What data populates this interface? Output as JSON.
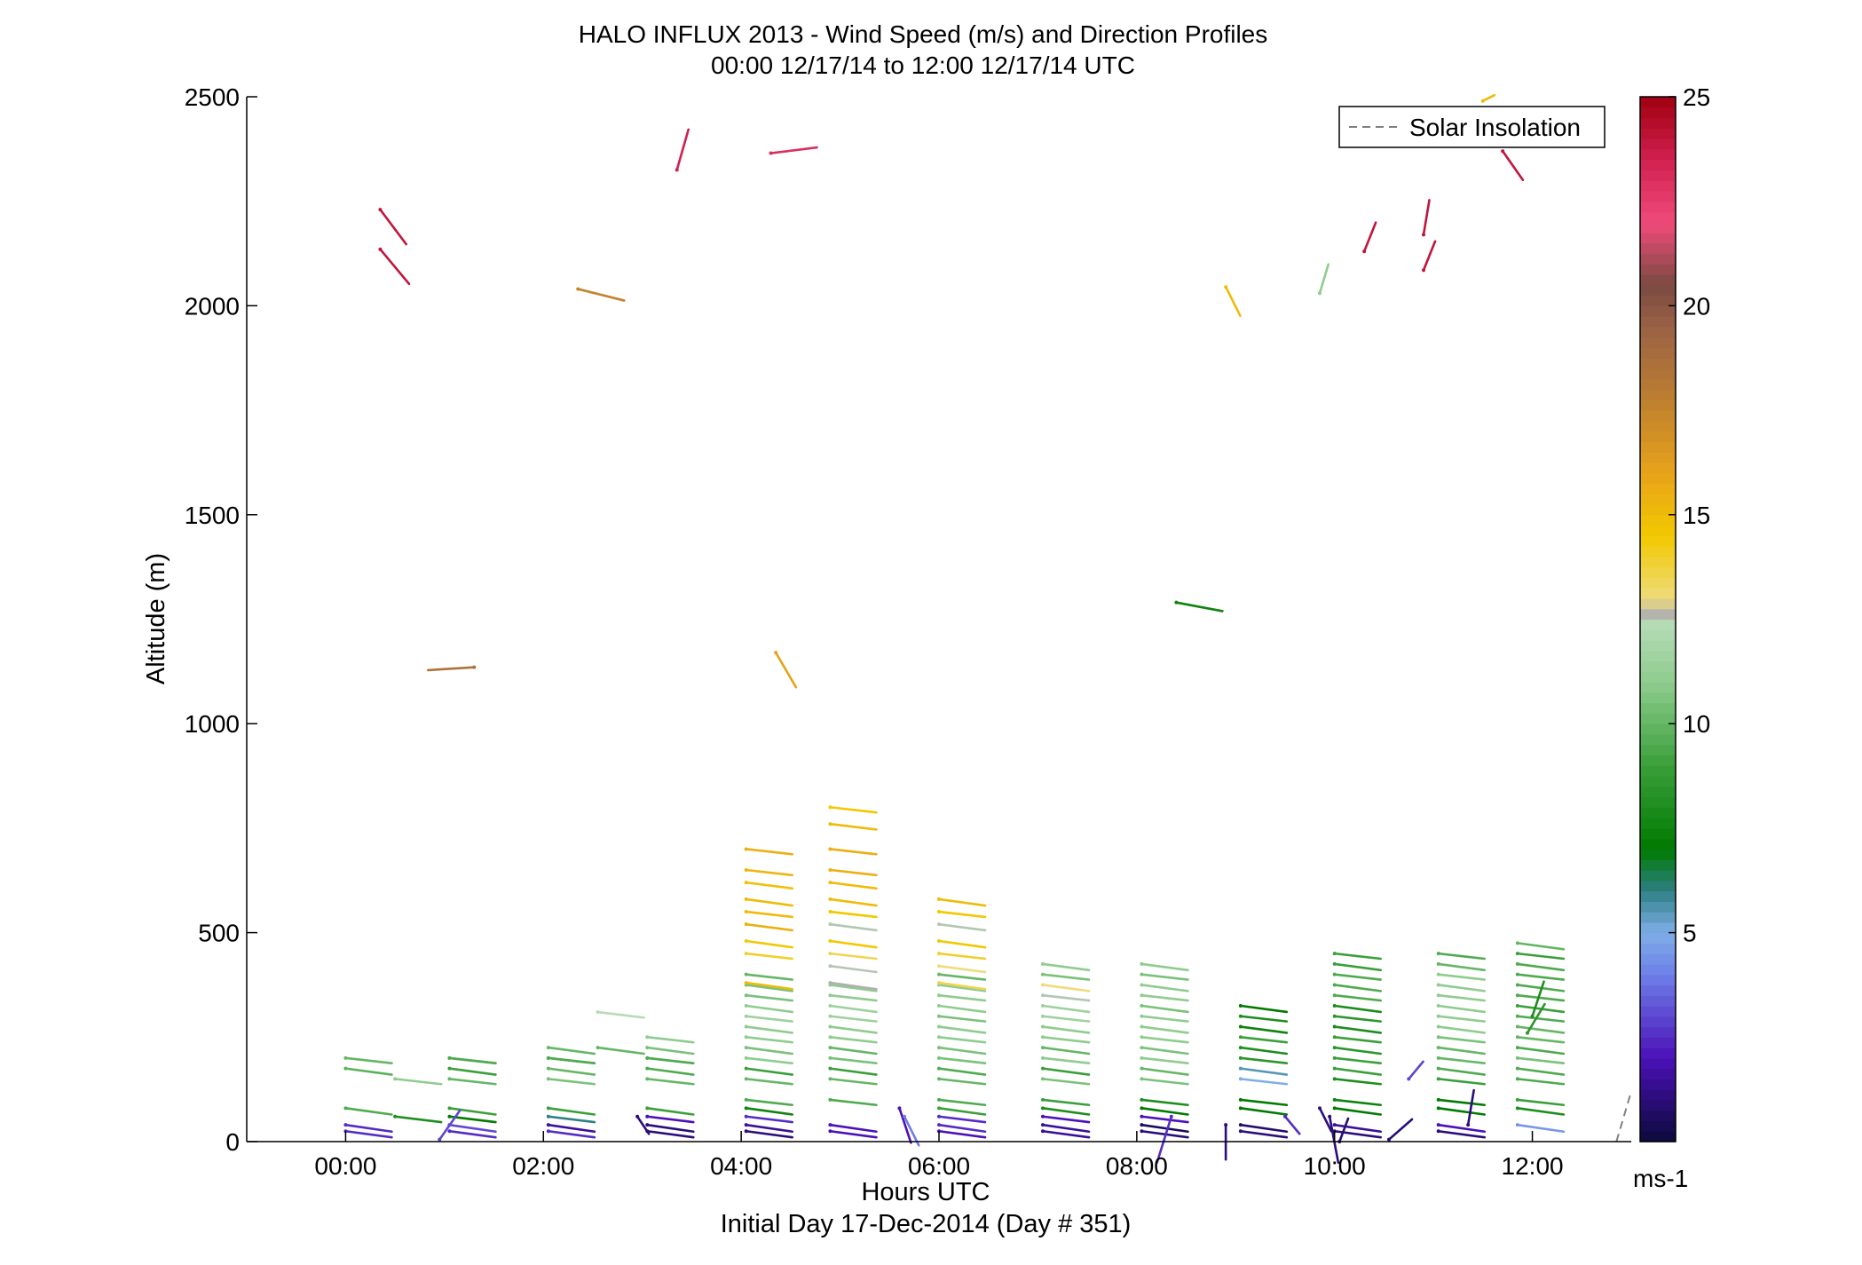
{
  "chart_data": {
    "type": "scatter",
    "title": "HALO INFLUX 2013 - Wind Speed (m/s) and Direction Profiles",
    "subtitle": "00:00 12/17/14 to 12:00 12/17/14  UTC",
    "xlabel": "Hours UTC",
    "xlabel2": "Initial Day 17-Dec-2014 (Day # 351)",
    "ylabel": "Altitude (m)",
    "xlim": [
      -1,
      13
    ],
    "ylim": [
      0,
      2500
    ],
    "x_ticks": [
      0,
      2,
      4,
      6,
      8,
      10,
      12
    ],
    "x_tick_labels": [
      "00:00",
      "02:00",
      "04:00",
      "06:00",
      "08:00",
      "10:00",
      "12:00"
    ],
    "y_ticks": [
      0,
      500,
      1000,
      1500,
      2000,
      2500
    ],
    "y_tick_labels": [
      "0",
      "500",
      "1000",
      "1500",
      "2000",
      "2500"
    ],
    "legend": {
      "label": "Solar Insolation",
      "position": "top-right",
      "style": "dashed gray line"
    },
    "solar_insolation_line": [
      [
        12.85,
        0
      ],
      [
        13.0,
        120
      ]
    ],
    "colorbar": {
      "unit_label": "ms-1",
      "range": [
        0,
        25
      ],
      "ticks": [
        5,
        10,
        15,
        20,
        25
      ],
      "tick_labels": [
        "5",
        "10",
        "15",
        "20",
        "25"
      ],
      "colormap": [
        [
          0,
          "#0b0a3a"
        ],
        [
          2,
          "#4b10b8"
        ],
        [
          4,
          "#6e7fe8"
        ],
        [
          5,
          "#7faee8"
        ],
        [
          6,
          "#2f7f84"
        ],
        [
          7,
          "#007a00"
        ],
        [
          9,
          "#3a9f3a"
        ],
        [
          11,
          "#8fcc8f"
        ],
        [
          12.4,
          "#b6dbb6"
        ],
        [
          12.6,
          "#b0b0b0"
        ],
        [
          13,
          "#eedc7a"
        ],
        [
          14.5,
          "#f2c800"
        ],
        [
          16,
          "#e8a21a"
        ],
        [
          18,
          "#b87a33"
        ],
        [
          19.5,
          "#9a6246"
        ],
        [
          20.5,
          "#7a4a40"
        ],
        [
          22,
          "#f04a7a"
        ],
        [
          23.5,
          "#d02050"
        ],
        [
          25,
          "#a00010"
        ]
      ]
    },
    "vector_rows": [
      {
        "z": 200,
        "pts": [
          [
            0,
            10
          ],
          [
            1.05,
            9.5
          ],
          [
            2.05,
            9.5
          ],
          [
            3.05,
            11
          ],
          [
            4.05,
            11
          ],
          [
            4.9,
            10.5
          ],
          [
            6.0,
            10.5
          ],
          [
            7.05,
            11
          ],
          [
            8.05,
            11
          ],
          [
            9.05,
            8.5
          ],
          [
            10.0,
            9
          ],
          [
            11.05,
            10
          ],
          [
            11.85,
            10.5
          ]
        ]
      },
      {
        "z": 175,
        "pts": [
          [
            0,
            9.8
          ],
          [
            1.05,
            9
          ],
          [
            2.05,
            10
          ],
          [
            3.05,
            9.5
          ],
          [
            4.05,
            9
          ],
          [
            4.9,
            9
          ],
          [
            6.0,
            9.5
          ],
          [
            7.05,
            9
          ],
          [
            8.05,
            10
          ],
          [
            9.05,
            5.5
          ],
          [
            10.0,
            9
          ],
          [
            11.05,
            9.5
          ],
          [
            11.85,
            9.5
          ]
        ]
      },
      {
        "z": 150,
        "pts": [
          [
            0.5,
            11
          ],
          [
            1.05,
            10
          ],
          [
            2.05,
            10.5
          ],
          [
            3.05,
            10
          ],
          [
            4.05,
            10
          ],
          [
            4.9,
            10
          ],
          [
            6.0,
            10
          ],
          [
            7.05,
            10.5
          ],
          [
            8.05,
            10.5
          ],
          [
            9.05,
            5
          ],
          [
            10.0,
            8
          ],
          [
            11.05,
            9
          ],
          [
            11.85,
            9.5
          ]
        ]
      },
      {
        "z": 225,
        "pts": [
          [
            2.05,
            10
          ],
          [
            2.55,
            10
          ],
          [
            3.05,
            10.5
          ],
          [
            4.05,
            10.5
          ],
          [
            4.9,
            10
          ],
          [
            6.0,
            10.5
          ],
          [
            7.05,
            10
          ],
          [
            8.05,
            10.5
          ],
          [
            9.05,
            8
          ],
          [
            10.0,
            8.5
          ],
          [
            11.05,
            10
          ],
          [
            11.85,
            9.5
          ]
        ]
      },
      {
        "z": 250,
        "pts": [
          [
            3.05,
            11
          ],
          [
            4.05,
            11
          ],
          [
            4.9,
            11
          ],
          [
            6.0,
            11
          ],
          [
            7.05,
            11
          ],
          [
            8.05,
            11
          ],
          [
            9.05,
            9
          ],
          [
            10.0,
            9
          ],
          [
            11.05,
            10.5
          ],
          [
            11.85,
            10
          ]
        ]
      },
      {
        "z": 275,
        "pts": [
          [
            4.05,
            11
          ],
          [
            4.9,
            11
          ],
          [
            6.0,
            11
          ],
          [
            7.05,
            11
          ],
          [
            8.05,
            11
          ],
          [
            9.05,
            7.5
          ],
          [
            10.0,
            8
          ],
          [
            11.05,
            11
          ],
          [
            11.85,
            10
          ]
        ]
      },
      {
        "z": 300,
        "pts": [
          [
            4.05,
            11.5
          ],
          [
            4.9,
            11.5
          ],
          [
            6.0,
            10.5
          ],
          [
            7.05,
            11.5
          ],
          [
            8.05,
            11
          ],
          [
            9.05,
            8
          ],
          [
            10.0,
            8.5
          ],
          [
            11.05,
            11
          ],
          [
            11.85,
            9.5
          ]
        ]
      },
      {
        "z": 325,
        "pts": [
          [
            4.05,
            11
          ],
          [
            4.9,
            11.5
          ],
          [
            6.0,
            11
          ],
          [
            7.05,
            11.5
          ],
          [
            8.05,
            10.5
          ],
          [
            9.05,
            7
          ],
          [
            10.0,
            8
          ],
          [
            11.05,
            11
          ],
          [
            11.85,
            9
          ]
        ]
      },
      {
        "z": 350,
        "pts": [
          [
            4.05,
            10.5
          ],
          [
            4.9,
            11
          ],
          [
            6.0,
            11
          ],
          [
            7.05,
            12.5
          ],
          [
            8.05,
            11
          ],
          [
            10.0,
            9.5
          ],
          [
            11.05,
            11
          ],
          [
            11.85,
            9.5
          ]
        ]
      },
      {
        "z": 375,
        "pts": [
          [
            4.05,
            10.5
          ],
          [
            4.9,
            11
          ],
          [
            6.0,
            11
          ],
          [
            7.05,
            13
          ],
          [
            8.05,
            11
          ],
          [
            10.0,
            9.5
          ],
          [
            11.05,
            11
          ],
          [
            11.85,
            9.5
          ]
        ]
      },
      {
        "z": 400,
        "pts": [
          [
            4.05,
            10
          ],
          [
            6.0,
            10
          ],
          [
            7.05,
            10.5
          ],
          [
            8.05,
            10.5
          ],
          [
            10.0,
            9.5
          ],
          [
            11.05,
            11
          ],
          [
            11.85,
            9.5
          ]
        ]
      },
      {
        "z": 425,
        "pts": [
          [
            7.05,
            11
          ],
          [
            8.05,
            11
          ],
          [
            10.0,
            9
          ],
          [
            11.05,
            10
          ],
          [
            11.85,
            9.5
          ]
        ]
      },
      {
        "z": 450,
        "pts": [
          [
            10.0,
            9
          ],
          [
            11.05,
            9.5
          ],
          [
            11.85,
            9
          ]
        ]
      },
      {
        "z": 475,
        "pts": [
          [
            11.85,
            10
          ]
        ]
      },
      {
        "z": 100,
        "pts": [
          [
            4.05,
            9.5
          ],
          [
            4.9,
            9.5
          ],
          [
            6.0,
            9.5
          ],
          [
            7.05,
            9
          ],
          [
            8.05,
            8
          ],
          [
            9.05,
            7
          ],
          [
            10.0,
            7.5
          ],
          [
            11.05,
            7
          ],
          [
            11.85,
            9
          ]
        ]
      },
      {
        "z": 80,
        "pts": [
          [
            0,
            9.5
          ],
          [
            1.05,
            9
          ],
          [
            2.05,
            9
          ],
          [
            3.05,
            9
          ],
          [
            4.05,
            7.5
          ],
          [
            6.0,
            9
          ],
          [
            7.05,
            8
          ],
          [
            8.05,
            7
          ],
          [
            9.05,
            7
          ],
          [
            10.0,
            7
          ],
          [
            11.05,
            7
          ],
          [
            11.85,
            8
          ]
        ]
      },
      {
        "z": 60,
        "pts": [
          [
            0.5,
            8
          ],
          [
            1.05,
            7
          ],
          [
            2.05,
            6
          ],
          [
            3.05,
            2
          ],
          [
            4.05,
            2.5
          ],
          [
            6.0,
            2.5
          ],
          [
            7.05,
            2
          ],
          [
            8.05,
            2
          ]
        ]
      },
      {
        "z": 40,
        "pts": [
          [
            0,
            2.5
          ],
          [
            1.05,
            3
          ],
          [
            2.05,
            1.5
          ],
          [
            3.05,
            1
          ],
          [
            4.05,
            1.5
          ],
          [
            4.9,
            2
          ],
          [
            6.0,
            2.5
          ],
          [
            7.05,
            1.5
          ],
          [
            8.05,
            0.5
          ],
          [
            9.05,
            0.8
          ],
          [
            10.0,
            1.5
          ],
          [
            11.05,
            2
          ],
          [
            11.85,
            4.5
          ]
        ]
      },
      {
        "z": 25,
        "pts": [
          [
            0,
            2.5
          ],
          [
            1.05,
            2.5
          ],
          [
            2.05,
            2.5
          ],
          [
            3.05,
            1
          ],
          [
            4.05,
            1
          ],
          [
            4.9,
            2
          ],
          [
            6.0,
            2
          ],
          [
            7.05,
            1.5
          ],
          [
            8.05,
            1
          ],
          [
            9.05,
            1
          ],
          [
            10.0,
            1
          ],
          [
            11.05,
            1
          ]
        ]
      },
      {
        "z": 200,
        "pts": [
          [
            1.05,
            9.5
          ],
          [
            2.05,
            9.5
          ],
          [
            3.05,
            9.5
          ]
        ]
      },
      {
        "z": 520,
        "pts": [
          [
            4.05,
            15.5
          ],
          [
            4.9,
            12.5
          ],
          [
            6.0,
            12.5
          ]
        ]
      },
      {
        "z": 550,
        "pts": [
          [
            4.05,
            15
          ],
          [
            4.9,
            14.5
          ],
          [
            6.0,
            14.5
          ]
        ]
      },
      {
        "z": 580,
        "pts": [
          [
            4.05,
            15
          ],
          [
            4.9,
            15
          ],
          [
            6.0,
            15
          ]
        ]
      },
      {
        "z": 620,
        "pts": [
          [
            4.05,
            14.8
          ],
          [
            4.9,
            15
          ]
        ]
      },
      {
        "z": 650,
        "pts": [
          [
            4.05,
            15.2
          ],
          [
            4.9,
            15.5
          ]
        ]
      },
      {
        "z": 700,
        "pts": [
          [
            4.05,
            15.5
          ],
          [
            4.9,
            15.5
          ]
        ]
      },
      {
        "z": 760,
        "pts": [
          [
            4.9,
            15
          ]
        ]
      },
      {
        "z": 800,
        "pts": [
          [
            4.9,
            14.5
          ]
        ]
      },
      {
        "z": 480,
        "pts": [
          [
            4.05,
            14.5
          ],
          [
            4.9,
            14.5
          ],
          [
            6.0,
            14.5
          ]
        ]
      },
      {
        "z": 450,
        "pts": [
          [
            4.05,
            14
          ],
          [
            4.9,
            13.5
          ],
          [
            6.0,
            14
          ]
        ]
      },
      {
        "z": 420,
        "pts": [
          [
            4.9,
            12.5
          ],
          [
            6.0,
            13
          ]
        ]
      },
      {
        "z": 380,
        "pts": [
          [
            4.05,
            15
          ],
          [
            4.9,
            12.6
          ],
          [
            6.0,
            13.5
          ]
        ]
      },
      {
        "z": 310,
        "pts": [
          [
            2.55,
            12.4
          ]
        ]
      }
    ],
    "vectors": [
      {
        "x": 0.35,
        "z": 2230,
        "u": 4.5,
        "v": -6,
        "speed": 24
      },
      {
        "x": 0.35,
        "z": 2135,
        "u": 5,
        "v": -6,
        "speed": 24
      },
      {
        "x": 1.3,
        "z": 1135,
        "u": -8,
        "v": -0.5,
        "speed": 18.5
      },
      {
        "x": 3.35,
        "z": 2325,
        "u": 2,
        "v": 7,
        "speed": 23.5
      },
      {
        "x": 4.3,
        "z": 2365,
        "u": 8,
        "v": 1,
        "speed": 23
      },
      {
        "x": 2.35,
        "z": 2040,
        "u": 8,
        "v": -2,
        "speed": 17.5
      },
      {
        "x": 4.35,
        "z": 1170,
        "u": 3.5,
        "v": -6,
        "speed": 16
      },
      {
        "x": 8.4,
        "z": 1290,
        "u": 8,
        "v": -1.5,
        "speed": 7.5
      },
      {
        "x": 8.9,
        "z": 2045,
        "u": 2.5,
        "v": -5,
        "speed": 15
      },
      {
        "x": 9.85,
        "z": 2030,
        "u": 1.5,
        "v": 5,
        "speed": 11
      },
      {
        "x": 10.3,
        "z": 2130,
        "u": 2,
        "v": 5,
        "speed": 24
      },
      {
        "x": 10.9,
        "z": 2170,
        "u": 1,
        "v": 6,
        "speed": 24
      },
      {
        "x": 10.9,
        "z": 2085,
        "u": 2,
        "v": 5,
        "speed": 24
      },
      {
        "x": 11.7,
        "z": 2370,
        "u": 3.5,
        "v": -5,
        "speed": 24
      },
      {
        "x": 11.5,
        "z": 2490,
        "u": 2,
        "v": 1,
        "speed": 15
      },
      {
        "x": 0.95,
        "z": 5,
        "u": 3.5,
        "v": 5,
        "speed": 3
      },
      {
        "x": 2.95,
        "z": 60,
        "u": 2,
        "v": -3,
        "speed": 1
      },
      {
        "x": 5.6,
        "z": 80,
        "u": 2,
        "v": -6,
        "speed": 2
      },
      {
        "x": 5.65,
        "z": 60,
        "u": 2.5,
        "v": -5,
        "speed": 4
      },
      {
        "x": 8.35,
        "z": 60,
        "u": -2.5,
        "v": -8,
        "speed": 2.5
      },
      {
        "x": 8.9,
        "z": 40,
        "u": 0,
        "v": -6,
        "speed": 1
      },
      {
        "x": 9.5,
        "z": 60,
        "u": 2.5,
        "v": -3,
        "speed": 2.5
      },
      {
        "x": 9.85,
        "z": 80,
        "u": 2,
        "v": -4,
        "speed": 1
      },
      {
        "x": 9.95,
        "z": 60,
        "u": 1.5,
        "v": -8,
        "speed": 1
      },
      {
        "x": 10.05,
        "z": 0,
        "u": 1.5,
        "v": 4,
        "speed": 1
      },
      {
        "x": 10.55,
        "z": 5,
        "u": 4,
        "v": 3.5,
        "speed": 1
      },
      {
        "x": 10.75,
        "z": 150,
        "u": 2.5,
        "v": 3,
        "speed": 3
      },
      {
        "x": 11.35,
        "z": 40,
        "u": 1,
        "v": 6,
        "speed": 1
      },
      {
        "x": 12.0,
        "z": 300,
        "u": 2,
        "v": 6,
        "speed": 8
      },
      {
        "x": 11.95,
        "z": 260,
        "u": 3,
        "v": 5,
        "speed": 8.5
      }
    ]
  }
}
